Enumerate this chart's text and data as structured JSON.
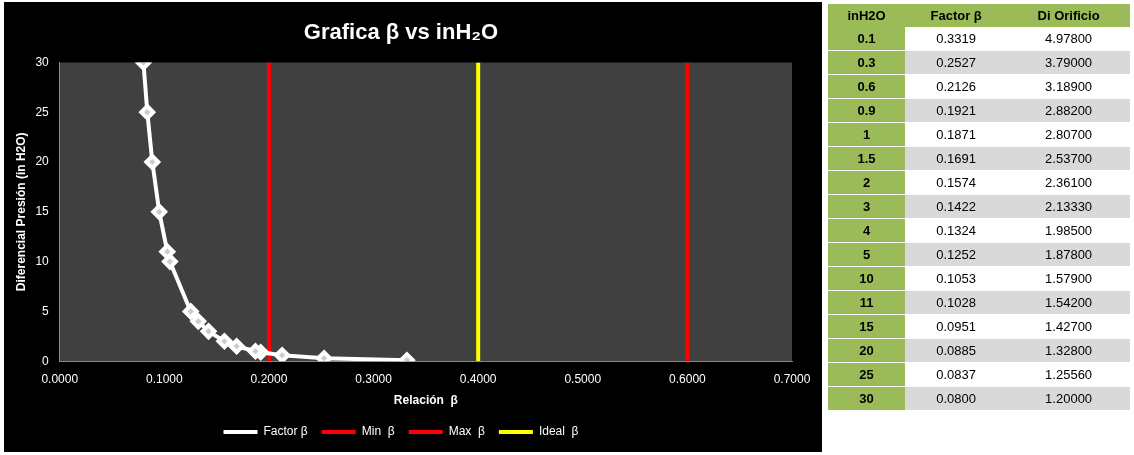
{
  "chart_data": [
    {
      "type": "line",
      "title": "Grafica β vs inH₂O",
      "xlabel": "Relación  β",
      "ylabel": "Diferencial Presión (in H2O)",
      "series": [
        {
          "name": "Factor β",
          "color": "#ffffff",
          "x": [
            0.3319,
            0.2527,
            0.2126,
            0.1921,
            0.1871,
            0.1691,
            0.1574,
            0.1422,
            0.1324,
            0.1252,
            0.1053,
            0.1028,
            0.0951,
            0.0885,
            0.0837,
            0.08
          ],
          "values": [
            0.1,
            0.3,
            0.6,
            0.9,
            1,
            1.5,
            2,
            3,
            4,
            5,
            10,
            11,
            15,
            20,
            25,
            30
          ]
        }
      ],
      "ref_lines": [
        {
          "axis": "x",
          "value": 0.2,
          "label": "Min  β",
          "color": "#ff0000"
        },
        {
          "axis": "x",
          "value": 0.6,
          "label": "Max  β",
          "color": "#ff0000"
        },
        {
          "axis": "x",
          "value": 0.4,
          "label": "Ideal  β",
          "color": "#ffff00"
        }
      ],
      "xlim": [
        0,
        0.7
      ],
      "xticks": [
        {
          "value": 0,
          "label": "0.0000"
        },
        {
          "value": 0.1,
          "label": "0.1000"
        },
        {
          "value": 0.2,
          "label": "0.2000"
        },
        {
          "value": 0.3,
          "label": "0.3000"
        },
        {
          "value": 0.4,
          "label": "0.4000"
        },
        {
          "value": 0.5,
          "label": "0.5000"
        },
        {
          "value": 0.6,
          "label": "0.6000"
        },
        {
          "value": 0.7,
          "label": "0.7000"
        }
      ],
      "ylim": [
        0,
        30
      ],
      "yticks": [
        0,
        5,
        10,
        15,
        20,
        25,
        30
      ],
      "legend": "bottom",
      "marker": "diamond",
      "line_style": "solid"
    },
    {
      "type": "other",
      "categories": [
        "inH2O",
        "Factor β",
        "Di Orificio"
      ],
      "cell_labels": [
        [
          "0.1",
          "0.3319",
          "4.97800"
        ],
        [
          "0.3",
          "0.2527",
          "3.79000"
        ],
        [
          "0.6",
          "0.2126",
          "3.18900"
        ],
        [
          "0.9",
          "0.1921",
          "2.88200"
        ],
        [
          "1",
          "0.1871",
          "2.80700"
        ],
        [
          "1.5",
          "0.1691",
          "2.53700"
        ],
        [
          "2",
          "0.1574",
          "2.36100"
        ],
        [
          "3",
          "0.1422",
          "2.13330"
        ],
        [
          "4",
          "0.1324",
          "1.98500"
        ],
        [
          "5",
          "0.1252",
          "1.87800"
        ],
        [
          "10",
          "0.1053",
          "1.57900"
        ],
        [
          "11",
          "0.1028",
          "1.54200"
        ],
        [
          "15",
          "0.0951",
          "1.42700"
        ],
        [
          "20",
          "0.0885",
          "1.32800"
        ],
        [
          "25",
          "0.0837",
          "1.25560"
        ],
        [
          "30",
          "0.0800",
          "1.20000"
        ]
      ]
    }
  ]
}
